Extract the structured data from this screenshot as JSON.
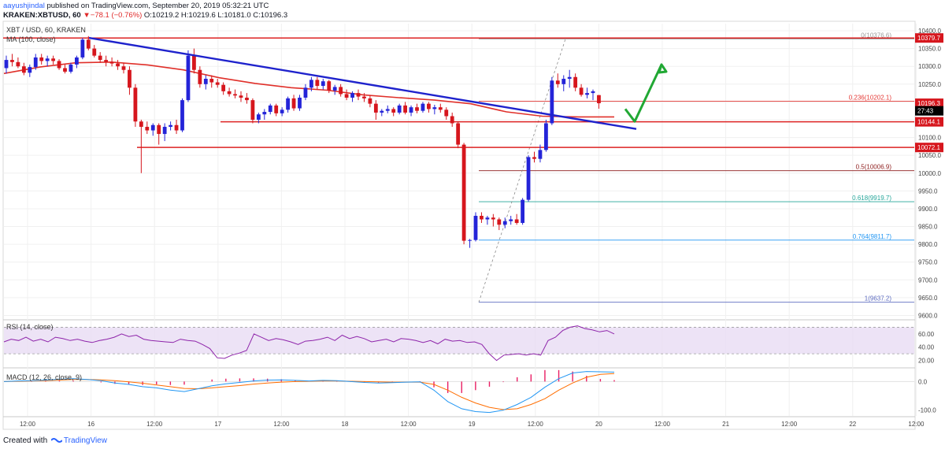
{
  "header": {
    "author": "aayushjindal",
    "published_text": "published on TradingView.com, September 20, 2019 05:32:21 UTC",
    "symbol": "KRAKEN:XBTUSD, 60",
    "change_arrow": "▼",
    "change": "−78.1 (−0.76%)",
    "ohlc": "O:10219.2 H:10219.6 L:10181.0 C:10196.3"
  },
  "pane_labels": {
    "main_title": "XBT / USD, 60, KRAKEN",
    "ma_label": "MA (100, close)",
    "rsi_label": "RSI (14, close)",
    "macd_label": "MACD (12, 26, close, 9)"
  },
  "footer": {
    "created_with": "Created with",
    "brand": "TradingView"
  },
  "colors": {
    "bull": "#2424d8",
    "bear": "#d6161d",
    "ma": "#e0302a",
    "trendline": "#1e22cc",
    "hline": "#dd2222",
    "arrow": "#21a834",
    "rsi_line": "#8e24aa",
    "rsi_band": "#e8dcf4",
    "macd_line": "#2196f3",
    "signal_line": "#ff6d00",
    "hist": "#e91e63"
  },
  "chart_data": {
    "type": "candlestick",
    "price_axis": {
      "range": [
        9590,
        10420
      ],
      "ticks": [
        "10400.0",
        "10350.0",
        "10300.0",
        "10250.0",
        "10200.0",
        "10150.0",
        "10100.0",
        "10050.0",
        "10000.0",
        "9950.0",
        "9900.0",
        "9850.0",
        "9800.0",
        "9750.0",
        "9700.0",
        "9650.0",
        "9600.0"
      ],
      "last_price": "10196.3",
      "countdown": "27:43"
    },
    "time_axis": {
      "labels": [
        "12:00",
        "16",
        "12:00",
        "17",
        "12:00",
        "18",
        "12:00",
        "19",
        "12:00",
        "20",
        "12:00",
        "21",
        "12:00",
        "22",
        "12:00"
      ]
    },
    "candles_ohlc": [
      [
        10295,
        10330,
        10280,
        10318
      ],
      [
        10318,
        10335,
        10300,
        10312
      ],
      [
        10312,
        10325,
        10295,
        10300
      ],
      [
        10300,
        10310,
        10275,
        10282
      ],
      [
        10282,
        10305,
        10270,
        10298
      ],
      [
        10298,
        10335,
        10290,
        10325
      ],
      [
        10325,
        10335,
        10305,
        10315
      ],
      [
        10315,
        10330,
        10300,
        10322
      ],
      [
        10322,
        10330,
        10305,
        10315
      ],
      [
        10315,
        10320,
        10290,
        10295
      ],
      [
        10295,
        10305,
        10280,
        10285
      ],
      [
        10285,
        10310,
        10280,
        10305
      ],
      [
        10305,
        10330,
        10295,
        10325
      ],
      [
        10325,
        10380,
        10320,
        10375
      ],
      [
        10375,
        10385,
        10345,
        10350
      ],
      [
        10350,
        10360,
        10325,
        10330
      ],
      [
        10330,
        10340,
        10310,
        10318
      ],
      [
        10318,
        10330,
        10300,
        10312
      ],
      [
        10312,
        10325,
        10300,
        10308
      ],
      [
        10308,
        10318,
        10290,
        10300
      ],
      [
        10300,
        10310,
        10280,
        10290
      ],
      [
        10290,
        10300,
        10220,
        10240
      ],
      [
        10240,
        10250,
        10130,
        10145
      ],
      [
        10145,
        10150,
        10000,
        10130
      ],
      [
        10130,
        10145,
        10110,
        10120
      ],
      [
        10120,
        10140,
        10105,
        10135
      ],
      [
        10135,
        10140,
        10080,
        10110
      ],
      [
        10110,
        10140,
        10090,
        10130
      ],
      [
        10130,
        10145,
        10120,
        10135
      ],
      [
        10135,
        10150,
        10110,
        10120
      ],
      [
        10120,
        10210,
        10115,
        10205
      ],
      [
        10205,
        10345,
        10200,
        10330
      ],
      [
        10330,
        10350,
        10280,
        10290
      ],
      [
        10290,
        10300,
        10240,
        10250
      ],
      [
        10250,
        10275,
        10235,
        10265
      ],
      [
        10265,
        10275,
        10240,
        10255
      ],
      [
        10255,
        10265,
        10240,
        10248
      ],
      [
        10248,
        10255,
        10220,
        10230
      ],
      [
        10230,
        10240,
        10215,
        10222
      ],
      [
        10222,
        10235,
        10210,
        10218
      ],
      [
        10218,
        10230,
        10200,
        10212
      ],
      [
        10212,
        10225,
        10195,
        10205
      ],
      [
        10205,
        10210,
        10140,
        10150
      ],
      [
        10150,
        10170,
        10140,
        10165
      ],
      [
        10165,
        10180,
        10150,
        10172
      ],
      [
        10172,
        10195,
        10165,
        10190
      ],
      [
        10190,
        10195,
        10160,
        10168
      ],
      [
        10168,
        10185,
        10160,
        10178
      ],
      [
        10178,
        10215,
        10170,
        10210
      ],
      [
        10210,
        10220,
        10175,
        10182
      ],
      [
        10182,
        10220,
        10175,
        10212
      ],
      [
        10212,
        10250,
        10205,
        10240
      ],
      [
        10240,
        10270,
        10230,
        10262
      ],
      [
        10262,
        10270,
        10235,
        10245
      ],
      [
        10245,
        10265,
        10235,
        10258
      ],
      [
        10258,
        10262,
        10225,
        10232
      ],
      [
        10232,
        10248,
        10220,
        10242
      ],
      [
        10242,
        10250,
        10215,
        10222
      ],
      [
        10222,
        10235,
        10205,
        10212
      ],
      [
        10212,
        10230,
        10200,
        10225
      ],
      [
        10225,
        10235,
        10205,
        10215
      ],
      [
        10215,
        10225,
        10200,
        10210
      ],
      [
        10210,
        10218,
        10185,
        10195
      ],
      [
        10195,
        10205,
        10150,
        10170
      ],
      [
        10170,
        10180,
        10160,
        10175
      ],
      [
        10175,
        10190,
        10168,
        10180
      ],
      [
        10180,
        10185,
        10160,
        10170
      ],
      [
        10170,
        10195,
        10165,
        10190
      ],
      [
        10190,
        10200,
        10165,
        10170
      ],
      [
        10170,
        10190,
        10160,
        10185
      ],
      [
        10185,
        10195,
        10168,
        10175
      ],
      [
        10175,
        10200,
        10170,
        10195
      ],
      [
        10195,
        10200,
        10170,
        10180
      ],
      [
        10180,
        10192,
        10165,
        10185
      ],
      [
        10185,
        10195,
        10170,
        10178
      ],
      [
        10178,
        10185,
        10150,
        10160
      ],
      [
        10160,
        10170,
        10130,
        10140
      ],
      [
        10140,
        10145,
        10070,
        10080
      ],
      [
        10080,
        10085,
        9800,
        9810
      ],
      [
        9810,
        9815,
        9790,
        9812
      ],
      [
        9812,
        9890,
        9808,
        9880
      ],
      [
        9880,
        9890,
        9860,
        9870
      ],
      [
        9870,
        9880,
        9855,
        9875
      ],
      [
        9875,
        9885,
        9850,
        9870
      ],
      [
        9870,
        9875,
        9840,
        9855
      ],
      [
        9855,
        9875,
        9845,
        9865
      ],
      [
        9865,
        9880,
        9855,
        9870
      ],
      [
        9870,
        9885,
        9855,
        9860
      ],
      [
        9860,
        9930,
        9855,
        9925
      ],
      [
        9925,
        10050,
        9920,
        10045
      ],
      [
        10045,
        10060,
        10030,
        10040
      ],
      [
        10040,
        10080,
        10030,
        10065
      ],
      [
        10065,
        10150,
        10060,
        10140
      ],
      [
        10140,
        10270,
        10135,
        10260
      ],
      [
        10260,
        10280,
        10240,
        10250
      ],
      [
        10250,
        10275,
        10230,
        10265
      ],
      [
        10265,
        10290,
        10240,
        10270
      ],
      [
        10270,
        10280,
        10230,
        10240
      ],
      [
        10240,
        10250,
        10215,
        10220
      ],
      [
        10220,
        10240,
        10210,
        10225
      ],
      [
        10225,
        10235,
        10205,
        10230
      ],
      [
        10219.2,
        10219.6,
        10181,
        10196.3
      ]
    ],
    "moving_average_100": [
      10280,
      10298,
      10310,
      10312,
      10304,
      10290,
      10268,
      10252,
      10240,
      10233,
      10220,
      10212,
      10205,
      10195,
      10172,
      10160,
      10158,
      10158
    ],
    "hlines": [
      10379.7,
      10144.1,
      10072.1
    ],
    "fibonacci": [
      {
        "level": "0",
        "price": 10376.6,
        "label": "0(10376.6)"
      },
      {
        "level": "0.236",
        "price": 10202.1,
        "label": "0.236(10202.1)"
      },
      {
        "level": "0.5",
        "price": 10006.9,
        "label": "0.5(10006.9)"
      },
      {
        "level": "0.618",
        "price": 9919.7,
        "label": "0.618(9919.7)"
      },
      {
        "level": "0.764",
        "price": 9811.7,
        "label": "0.764(9811.7)"
      },
      {
        "level": "1",
        "price": 9637.2,
        "label": "1(9637.2)"
      }
    ],
    "price_tags": [
      {
        "price": 10379.7,
        "label": "10379.7",
        "style": "red"
      },
      {
        "price": 10196.3,
        "label": "10196.3",
        "style": "red"
      },
      {
        "price": 10175,
        "label": "27:43",
        "style": "dark"
      },
      {
        "price": 10144.1,
        "label": "10144.1",
        "style": "red"
      },
      {
        "price": 10072.1,
        "label": "10072.1",
        "style": "red"
      }
    ],
    "trendline": [
      [
        0,
        10380
      ],
      [
        128,
        10124
      ]
    ],
    "forecast_arrows": [
      [
        [
          128,
          10180
        ],
        [
          130,
          10145
        ],
        [
          134,
          10305
        ]
      ]
    ],
    "rsi": {
      "range": [
        10,
        80
      ],
      "band": [
        30,
        70
      ],
      "ticks": [
        "60.00",
        "40.00",
        "20.00"
      ],
      "values": [
        48,
        52,
        50,
        55,
        49,
        52,
        48,
        55,
        53,
        50,
        52,
        49,
        47,
        50,
        52,
        55,
        60,
        56,
        58,
        52,
        50,
        49,
        48,
        47,
        52,
        50,
        49,
        44,
        38,
        24,
        23,
        28,
        31,
        35,
        60,
        55,
        50,
        53,
        51,
        48,
        44,
        49,
        50,
        52,
        55,
        50,
        58,
        53,
        56,
        53,
        48,
        50,
        52,
        48,
        53,
        52,
        50,
        47,
        50,
        45,
        52,
        49,
        50,
        47,
        48,
        44,
        30,
        20,
        28,
        29,
        30,
        28,
        30,
        28,
        50,
        55,
        65,
        70,
        72,
        68,
        66,
        63,
        65,
        60
      ]
    },
    "macd": {
      "range": [
        -120,
        45
      ],
      "ticks": [
        "0.0",
        "-100.0"
      ],
      "macd": [
        0,
        2,
        3,
        5,
        8,
        10,
        7,
        3,
        -5,
        -10,
        -18,
        -22,
        -30,
        -35,
        -25,
        -15,
        -8,
        -3,
        2,
        5,
        6,
        4,
        2,
        4,
        3,
        0,
        -3,
        -5,
        -4,
        -2,
        -1,
        -30,
        -70,
        -95,
        -105,
        -108,
        -100,
        -80,
        -55,
        -20,
        10,
        30,
        35,
        34,
        33
      ],
      "signal": [
        0,
        1,
        2,
        3,
        5,
        7,
        7,
        6,
        3,
        -1,
        -6,
        -12,
        -18,
        -24,
        -25,
        -22,
        -18,
        -14,
        -9,
        -5,
        -2,
        0,
        1,
        2,
        2,
        1,
        0,
        -1,
        -2,
        -2,
        -2,
        -10,
        -30,
        -55,
        -75,
        -90,
        -98,
        -95,
        -80,
        -60,
        -30,
        -5,
        15,
        25,
        28
      ],
      "hist": [
        0,
        1,
        2,
        3,
        3,
        3,
        0,
        -3,
        -8,
        -9,
        -12,
        -10,
        -12,
        -11,
        0,
        7,
        10,
        11,
        11,
        10,
        8,
        4,
        1,
        2,
        1,
        -1,
        -3,
        -4,
        -2,
        0,
        1,
        -20,
        -40,
        -40,
        -30,
        -18,
        -2,
        15,
        25,
        40,
        40,
        35,
        20,
        9,
        5
      ]
    }
  }
}
